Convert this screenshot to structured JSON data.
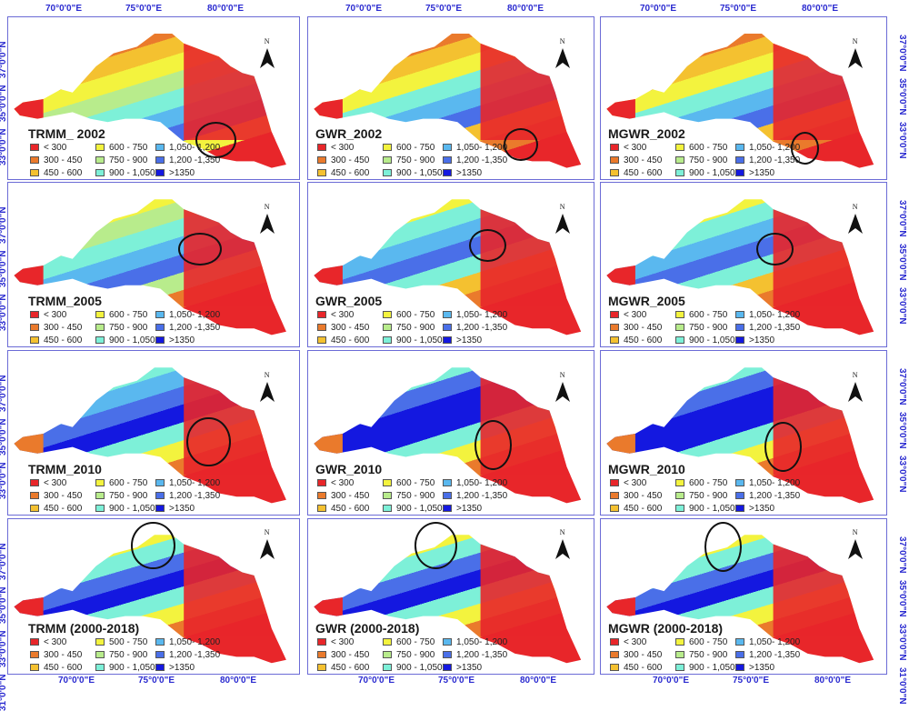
{
  "figure": {
    "rows": 4,
    "cols": 3,
    "legend": [
      {
        "label": "< 300",
        "color": "#e8262a"
      },
      {
        "label": "300 - 450",
        "color": "#ea7a2c"
      },
      {
        "label": "450 - 600",
        "color": "#f4c130"
      },
      {
        "label": "600 - 750",
        "color": "#f3f33e"
      },
      {
        "label": "750 - 900",
        "color": "#b8ec8c"
      },
      {
        "label": "900 - 1,050",
        "color": "#7df0d8"
      },
      {
        "label": "1,050- 1,200",
        "color": "#5ab8ef"
      },
      {
        "label": "1,200 -1,350",
        "color": "#4a6fe8"
      },
      {
        "label": ">1350",
        "color": "#1418e0"
      }
    ],
    "legend_trmm_total": [
      {
        "label": "< 300",
        "color": "#e8262a"
      },
      {
        "label": "300 - 450",
        "color": "#ea7a2c"
      },
      {
        "label": "450 - 600",
        "color": "#f4c130"
      },
      {
        "label": "500 - 750",
        "color": "#f3f33e"
      },
      {
        "label": "750 - 900",
        "color": "#b8ec8c"
      },
      {
        "label": "900 - 1,050",
        "color": "#7df0d8"
      },
      {
        "label": "1,050- 1,200",
        "color": "#5ab8ef"
      },
      {
        "label": "1,200 -1,350",
        "color": "#4a6fe8"
      },
      {
        "label": ">1350",
        "color": "#1418e0"
      }
    ],
    "north_label": "N",
    "x_ticks": [
      "70°0'0\"E",
      "75°0'0\"E",
      "80°0'0\"E"
    ],
    "y_ticks": [
      "37°0'0\"N",
      "35°0'0\"N",
      "33°0'0\"N",
      "31°0'0\"N"
    ],
    "axis_color": "#2a2ad0",
    "panel_border_color": "#6b6bd6",
    "highlight_circle_color": "#111111"
  },
  "panels": [
    {
      "title": "TRMM_ 2002",
      "model": "TRMM",
      "period": "2002"
    },
    {
      "title": "GWR_2002",
      "model": "GWR",
      "period": "2002"
    },
    {
      "title": "MGWR_2002",
      "model": "MGWR",
      "period": "2002"
    },
    {
      "title": "TRMM_2005",
      "model": "TRMM",
      "period": "2005"
    },
    {
      "title": "GWR_2005",
      "model": "GWR",
      "period": "2005"
    },
    {
      "title": "MGWR_2005",
      "model": "MGWR",
      "period": "2005"
    },
    {
      "title": "TRMM_2010",
      "model": "TRMM",
      "period": "2010"
    },
    {
      "title": "GWR_2010",
      "model": "GWR",
      "period": "2010"
    },
    {
      "title": "MGWR_2010",
      "model": "MGWR",
      "period": "2010"
    },
    {
      "title": "TRMM (2000-2018)",
      "model": "TRMM",
      "period": "2000-2018"
    },
    {
      "title": "GWR (2000-2018)",
      "model": "GWR",
      "period": "2000-2018"
    },
    {
      "title": "MGWR (2000-2018)",
      "model": "MGWR",
      "period": "2000-2018"
    }
  ]
}
